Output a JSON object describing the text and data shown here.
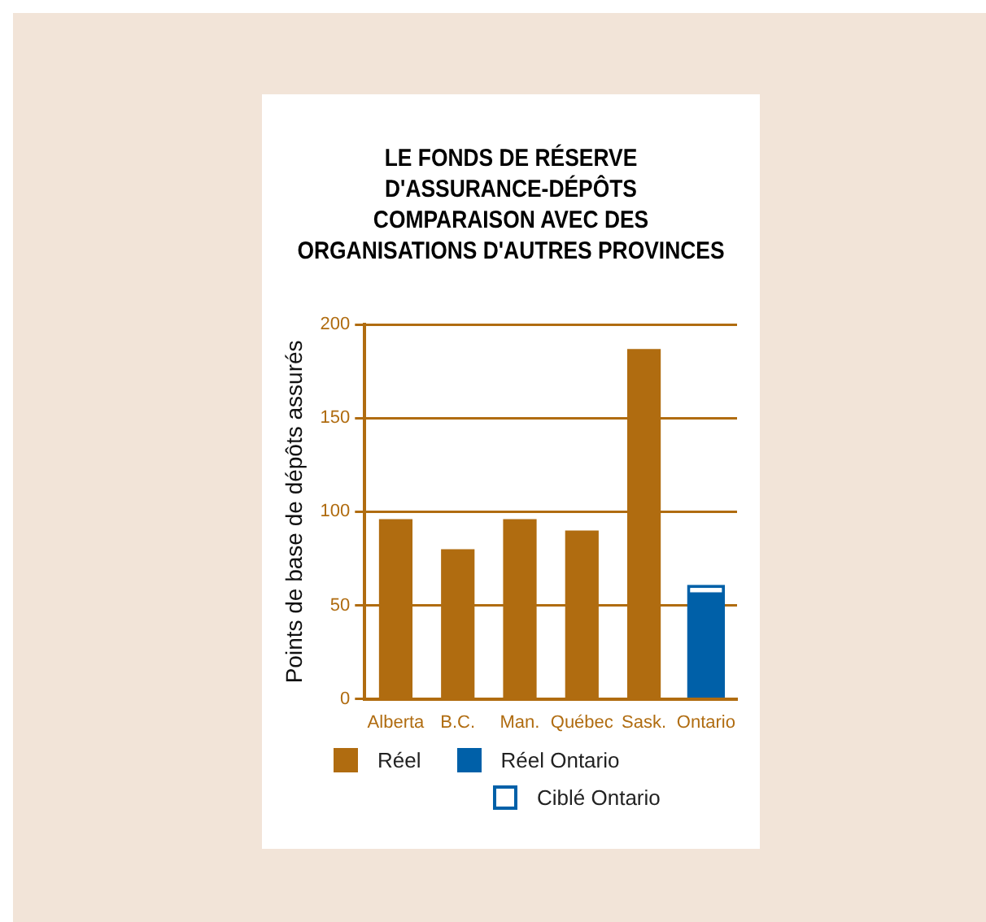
{
  "chart_data": {
    "type": "bar",
    "title": "LE FONDS DE RÉSERVE\nD'ASSURANCE-DÉPÔTS\nCOMPARAISON AVEC DES\nORGANISATIONS D'AUTRES PROVINCES",
    "ylabel": "Points de base de dépôts assurés",
    "categories": [
      "Alberta",
      "B.C.",
      "Man.",
      "Québec",
      "Sask.",
      "Ontario"
    ],
    "series": [
      {
        "name": "Réel",
        "color": "#b06c10",
        "values": [
          96,
          80,
          96,
          90,
          187,
          null
        ]
      },
      {
        "name": "Réel Ontario",
        "color": "#0060a8",
        "values": [
          null,
          null,
          null,
          null,
          null,
          57
        ]
      },
      {
        "name": "Ciblé Ontario",
        "color": "#0060a8",
        "values": [
          null,
          null,
          null,
          null,
          null,
          61
        ]
      }
    ],
    "ylim": [
      0,
      200
    ],
    "yticks": [
      0,
      50,
      100,
      150,
      200
    ],
    "grid": "y",
    "legend": "bottom"
  }
}
